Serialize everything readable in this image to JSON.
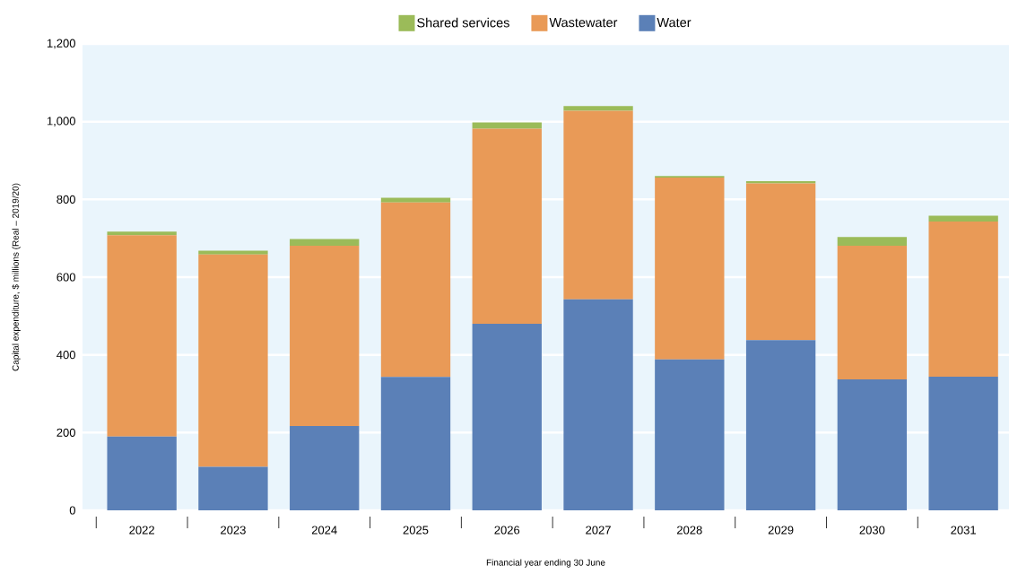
{
  "chart_data": {
    "type": "bar",
    "stacked": true,
    "xlabel": "Financial year ending 30 June",
    "ylabel": "Capital expenditure, $ millions (Real – 2019/20)",
    "categories": [
      "2022",
      "2023",
      "2024",
      "2025",
      "2026",
      "2027",
      "2028",
      "2029",
      "2030",
      "2031"
    ],
    "series": [
      {
        "name": "Water",
        "color": "#5b80b7",
        "values": [
          190,
          112,
          217,
          343,
          480,
          543,
          388,
          438,
          337,
          344
        ]
      },
      {
        "name": "Wastewater",
        "color": "#e99a57",
        "values": [
          518,
          546,
          464,
          449,
          502,
          485,
          468,
          403,
          344,
          399
        ]
      },
      {
        "name": "Shared services",
        "color": "#9bbb59",
        "values": [
          9,
          10,
          17,
          12,
          16,
          12,
          4,
          6,
          22,
          15
        ]
      }
    ],
    "ylim": [
      0,
      1200
    ],
    "yticks": [
      0,
      200,
      400,
      600,
      800,
      {
        "value": 1000,
        "label": "1,000"
      },
      {
        "value": 1200,
        "label": "1,200"
      }
    ],
    "grid": "y",
    "legend": "top"
  }
}
